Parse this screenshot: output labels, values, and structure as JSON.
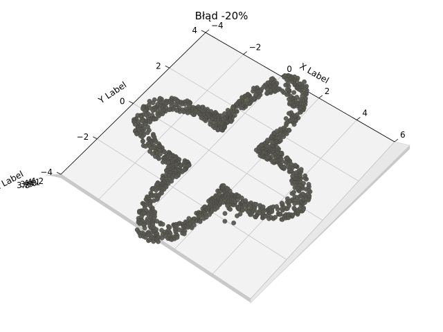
{
  "chart_data": {
    "type": "scatter",
    "projection": "3d",
    "title": "Błąd -20%",
    "xlabel": "X Label",
    "ylabel": "Y Label",
    "zlabel": "Z Label",
    "xlim": [
      -4,
      6
    ],
    "ylim": [
      -4,
      4
    ],
    "xticks": [
      "−4",
      "−2",
      "0",
      "2",
      "4",
      "6"
    ],
    "yticks": [
      "−4",
      "−2",
      "0",
      "2",
      "4"
    ],
    "zticks": [
      "3.8",
      "3.9",
      "4.0",
      "4.1",
      "4.2"
    ],
    "grid": true,
    "marker_color": "#5a5a52",
    "marker_edge_color": "#3e3e38",
    "pane_color": "#f2f2f2",
    "shape": "four-lobed closed curve (clover), cos(2θ) radial modulation with ~20% error noise",
    "curve": {
      "center": [
        0.7,
        0.0
      ],
      "base_radius": 2.8,
      "lobe_amplitude": 1.1,
      "band_width": 0.45,
      "error_fraction": -0.2
    }
  }
}
